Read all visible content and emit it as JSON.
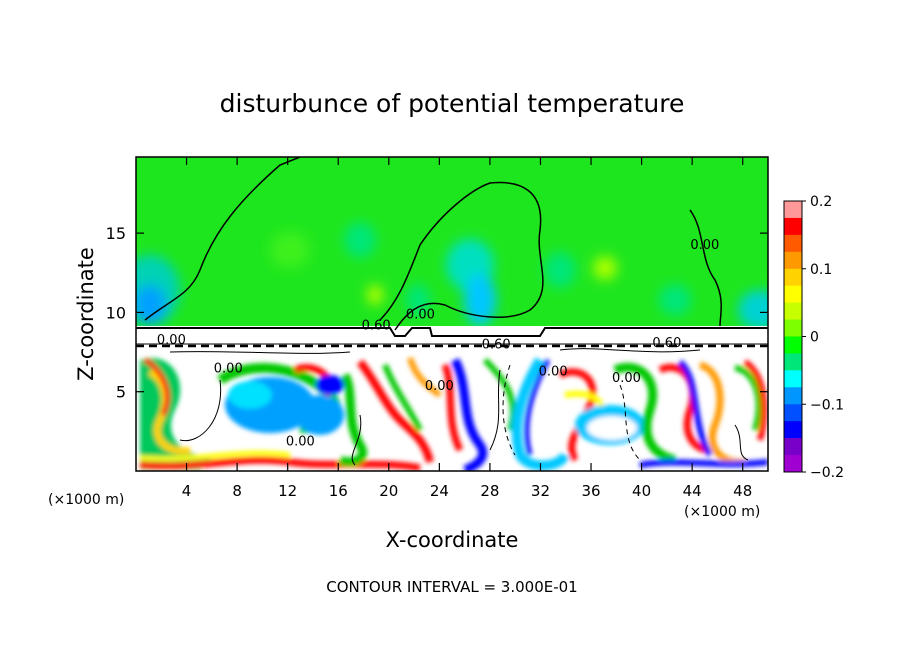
{
  "chart_data": {
    "type": "heatmap",
    "title": "disturbunce of potential temperature",
    "xlabel": "X-coordinate",
    "ylabel": "Z-coordinate",
    "x_unit_left": "(×1000 m)",
    "x_unit_right": "(×1000 m)",
    "footer": "CONTOUR INTERVAL = 3.000E-01",
    "xlim": [
      0,
      50
    ],
    "ylim": [
      0,
      19.8
    ],
    "x_ticks": [
      4,
      8,
      12,
      16,
      20,
      24,
      28,
      32,
      36,
      40,
      44,
      48
    ],
    "y_ticks": [
      5,
      10,
      15
    ],
    "colorbar": {
      "range": [
        -0.2,
        0.2
      ],
      "ticks": [
        0.2,
        0.1,
        0,
        -0.1,
        -0.2
      ],
      "tick_labels": [
        "0.2",
        "0.1",
        "0",
        "−0.1",
        "−0.2"
      ],
      "colors": [
        "#ff9999",
        "#ff0000",
        "#ff5a00",
        "#ff9900",
        "#ffd200",
        "#ffff00",
        "#c8ff00",
        "#7dff00",
        "#00ff00",
        "#00e678",
        "#00ffff",
        "#0096ff",
        "#0050ff",
        "#0000ff",
        "#7800c8",
        "#a000d2"
      ]
    },
    "contour_labels": [
      {
        "text": "0.00",
        "x": 45.0,
        "z": 14.2
      },
      {
        "text": "0.00",
        "x": 22.5,
        "z": 9.8
      },
      {
        "text": "0.60",
        "x": 19.0,
        "z": 9.1
      },
      {
        "text": "0.60",
        "x": 28.5,
        "z": 7.9
      },
      {
        "text": "0.60",
        "x": 42.0,
        "z": 8.0
      },
      {
        "text": "0.00",
        "x": 2.8,
        "z": 8.2
      },
      {
        "text": "0.00",
        "x": 7.3,
        "z": 6.4
      },
      {
        "text": "0.00",
        "x": 24.0,
        "z": 5.3
      },
      {
        "text": "0.00",
        "x": 33.0,
        "z": 6.2
      },
      {
        "text": "0.00",
        "x": 38.8,
        "z": 5.8
      },
      {
        "text": "0.00",
        "x": 13.0,
        "z": 1.8
      }
    ]
  }
}
